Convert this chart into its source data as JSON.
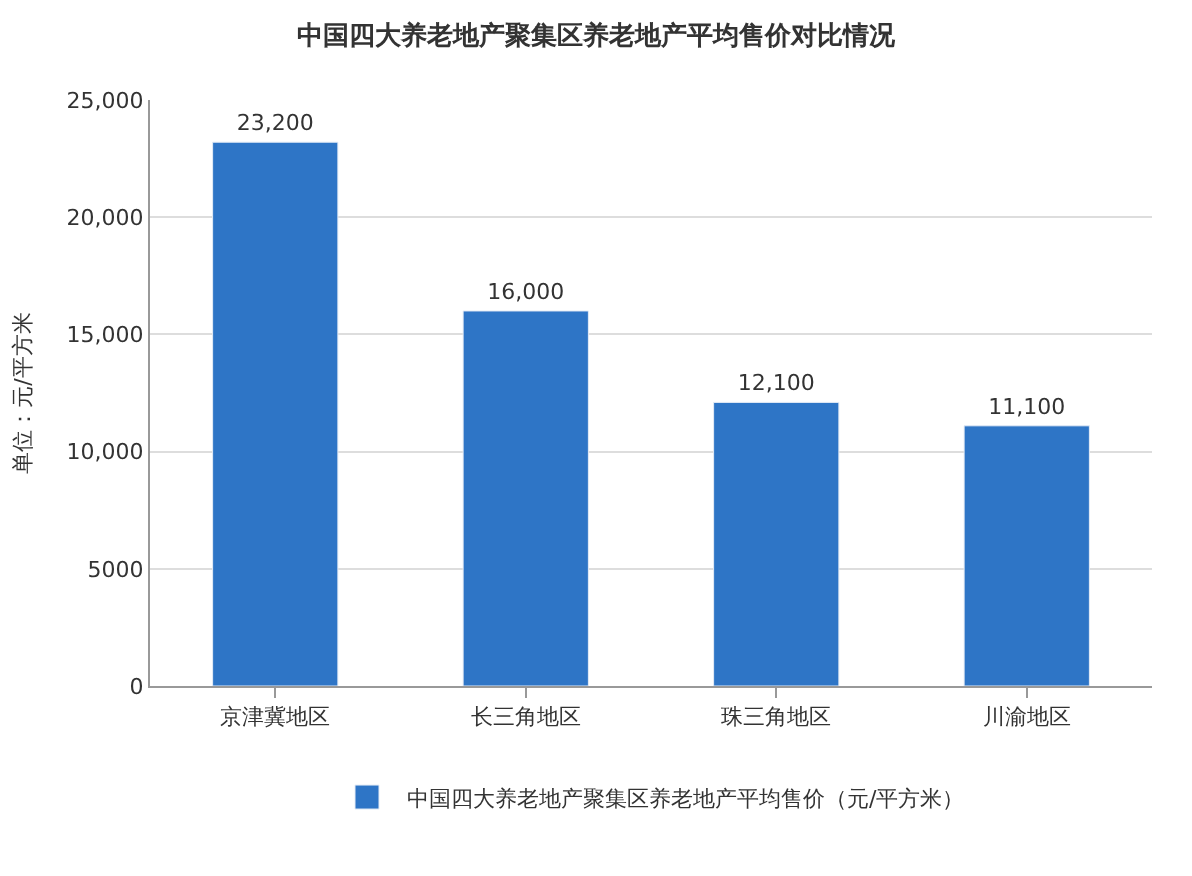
{
  "chart_data": {
    "type": "bar",
    "title": "中国四大养老地产聚集区养老地产平均售价对比情况",
    "ylabel": "单位：元/平方米",
    "categories": [
      "京津冀地区",
      "长三角地区",
      "珠三角地区",
      "川渝地区"
    ],
    "series": [
      {
        "name": "中国四大养老地产聚集区养老地产平均售价（元/平方米）",
        "color": "#2e75c6",
        "values": [
          23200,
          16000,
          12100,
          11100
        ],
        "value_labels": [
          "23,200",
          "16,000",
          "12,100",
          "11,100"
        ]
      }
    ],
    "ylim": [
      0,
      25000
    ],
    "yticks": [
      0,
      5000,
      {
        "value": 10000,
        "label": "10,000"
      },
      {
        "value": 15000,
        "label": "15,000"
      },
      {
        "value": 20000,
        "label": "20,000"
      },
      {
        "value": 25000,
        "label": "25,000"
      }
    ],
    "grid": "y",
    "legend": "bottom"
  }
}
